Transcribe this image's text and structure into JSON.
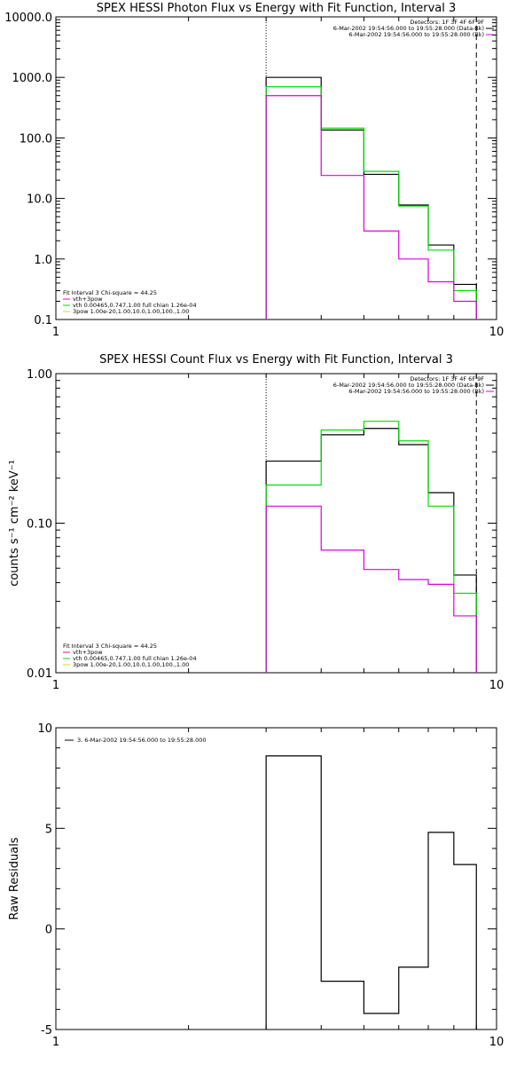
{
  "chart_data": [
    {
      "type": "line",
      "title": "SPEX HESSI Photon Flux vs Energy with Fit Function, Interval 3",
      "xlabel": "",
      "ylabel": "",
      "x_scale": "log",
      "y_scale": "log",
      "xlim": [
        1,
        10
      ],
      "ylim": [
        0.1,
        10000
      ],
      "x_tick_labels": [
        "1",
        "10"
      ],
      "y_tick_labels": [
        "0.1",
        "1.0",
        "10.0",
        "100.0",
        "1000.0",
        "10000.0"
      ],
      "bin_edges": [
        3,
        4,
        5,
        6,
        7,
        8,
        9
      ],
      "series": [
        {
          "name": "",
          "color": "#000000",
          "values": [
            1000,
            135,
            25,
            7.8,
            1.7,
            0.38
          ]
        },
        {
          "name": "",
          "color": "#00dd00",
          "values": [
            700,
            145,
            28,
            7.5,
            1.4,
            0.3
          ]
        },
        {
          "name": "",
          "color": "#dd00dd",
          "values": [
            500,
            24,
            2.9,
            1.0,
            0.42,
            0.2
          ]
        }
      ],
      "vlines": [
        {
          "x": 3,
          "style": "dotted"
        },
        {
          "x": 9,
          "style": "dashed"
        }
      ],
      "header_lines": [
        "Detectors: 1F 3F 4F 6F 9F",
        "6-Mar-2002 19:54:56.000 to 19:55:28.000 (Data-Bk)",
        "6-Mar-2002 19:54:56.000 to 19:55:28.000 (Bk)"
      ],
      "legend": {
        "heading": "Fit Interval 3   Chi-square = 44.25",
        "items": [
          {
            "label": "vth+3pow",
            "color": "#dd00dd"
          },
          {
            "label": "vth 0.00465,0.747,1.00  full chian 1.26e-04",
            "color": "#00dd00"
          },
          {
            "label": "3pow 1.00e-20,1.00,10.0,1.00,100.,1.00",
            "color": "#dddd00"
          }
        ]
      }
    },
    {
      "type": "line",
      "title": "SPEX HESSI Count Flux vs Energy with Fit Function, Interval 3",
      "xlabel": "",
      "ylabel": "counts s⁻¹ cm⁻² keV⁻¹",
      "x_scale": "log",
      "y_scale": "log",
      "xlim": [
        1,
        10
      ],
      "ylim": [
        0.01,
        1.0
      ],
      "x_tick_labels": [
        "1",
        "10"
      ],
      "y_tick_labels": [
        "0.01",
        "0.10",
        "1.00"
      ],
      "bin_edges": [
        3,
        4,
        5,
        6,
        7,
        8,
        9
      ],
      "series": [
        {
          "name": "",
          "color": "#000000",
          "values": [
            0.26,
            0.39,
            0.43,
            0.335,
            0.16,
            0.045
          ]
        },
        {
          "name": "",
          "color": "#00dd00",
          "values": [
            0.18,
            0.42,
            0.48,
            0.355,
            0.13,
            0.034
          ]
        },
        {
          "name": "",
          "color": "#dd00dd",
          "values": [
            0.13,
            0.066,
            0.049,
            0.042,
            0.039,
            0.024
          ]
        }
      ],
      "vlines": [
        {
          "x": 3,
          "style": "dotted"
        },
        {
          "x": 9,
          "style": "dashed"
        }
      ],
      "header_lines": [
        "Detectors: 1F 3F 4F 6F 9F",
        "6-Mar-2002 19:54:56.000 to 19:55:28.000 (Data-Bk)",
        "6-Mar-2002 19:54:56.000 to 19:55:28.000 (Bk)"
      ],
      "legend": {
        "heading": "Fit Interval 3   Chi-square = 44.25",
        "items": [
          {
            "label": "vth+3pow",
            "color": "#dd00dd"
          },
          {
            "label": "vth 0.00465,0.747,1.00  full chian 1.26e-04",
            "color": "#00dd00"
          },
          {
            "label": "3pow 1.00e-20,1.00,10.0,1.00,100.,1.00",
            "color": "#dddd00"
          }
        ]
      }
    },
    {
      "type": "line",
      "title": "",
      "xlabel": "",
      "ylabel": "Raw Residuals",
      "x_scale": "log",
      "y_scale": "linear",
      "xlim": [
        1,
        10
      ],
      "ylim": [
        -5,
        10
      ],
      "x_tick_labels": [
        "1",
        "10"
      ],
      "y_tick_labels": [
        "-5",
        "0",
        "5",
        "10"
      ],
      "y_ticks": [
        -5,
        0,
        5,
        10
      ],
      "bin_edges": [
        3,
        4,
        5,
        6,
        7,
        8,
        9
      ],
      "series": [
        {
          "name": "3. 6-Mar-2002 19:54:56.000 to 19:55:28.000",
          "color": "#000000",
          "values": [
            8.6,
            -2.6,
            -4.2,
            -1.9,
            4.8,
            3.2
          ]
        }
      ]
    }
  ]
}
